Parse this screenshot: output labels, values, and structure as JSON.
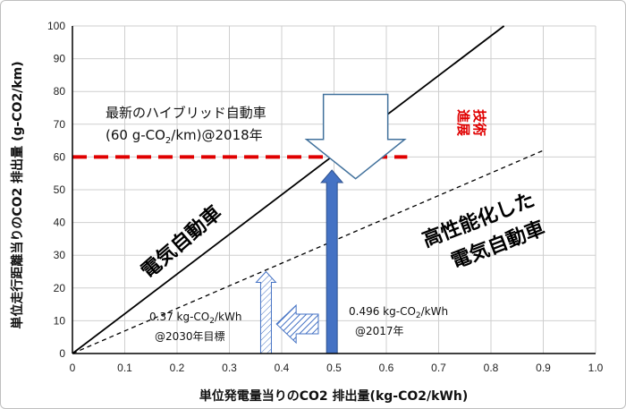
{
  "chart_data": {
    "type": "line",
    "x_axis": {
      "label": "単位発電量当りのCO2 排出量(kg-CO2/kWh)",
      "min": 0,
      "max": 1.0,
      "ticks": [
        "0",
        "0.1",
        "0.2",
        "0.3",
        "0.4",
        "0.5",
        "0.6",
        "0.7",
        "0.8",
        "0.9",
        "1.0"
      ]
    },
    "y_axis": {
      "label": "単位走行距離当りのCO2 排出量 (g-CO2/km)",
      "min": 0,
      "max": 100,
      "ticks": [
        "0",
        "10",
        "20",
        "30",
        "40",
        "50",
        "60",
        "70",
        "80",
        "90",
        "100"
      ]
    },
    "grid": true,
    "series": [
      {
        "style": "solid-black",
        "x": [
          0,
          0.825
        ],
        "y": [
          0,
          100
        ]
      },
      {
        "style": "dashed-black",
        "x": [
          0,
          0.9
        ],
        "y": [
          0,
          62
        ]
      },
      {
        "style": "dashed-red",
        "x": [
          0,
          0.64
        ],
        "y": [
          60,
          60
        ]
      }
    ],
    "arrows": [
      {
        "style": "solid-blue",
        "x": 0.496,
        "y_from": 0,
        "y_to": 56
      },
      {
        "style": "hatched-white",
        "x": 0.37,
        "y_from": 0,
        "y_to": 25
      },
      {
        "style": "hatched-blue-left",
        "x_from": 0.47,
        "x_to": 0.39,
        "y": 9
      },
      {
        "style": "outline-down",
        "x": 0.49,
        "y_from": 78,
        "y_to": 55
      }
    ],
    "annotations": {
      "hybrid_title": "最新のハイブリッド自動車",
      "hybrid_value": "(60 g-CO",
      "hybrid_value_sub": "2",
      "hybrid_value_end": "/km)@2018年",
      "ev_label": "電気自動車",
      "high_perf_ev_line1": "高性能化した",
      "high_perf_ev_line2": "電気自動車",
      "progress_line1": "技術",
      "progress_line2": "進展",
      "target_value": "0.37 kg-CO",
      "target_value_sub": "2",
      "target_value_end": "/kWh",
      "target_year": "@2030年目標",
      "current_value": "0.496 kg-CO",
      "current_value_sub": "2",
      "current_value_end": "/kWh",
      "current_year": "@2017年"
    }
  },
  "colors": {
    "grid": "#cfcfcf",
    "axis": "#000000",
    "red": "#e00000",
    "blue": "#4472c4",
    "dark_blue": "#2f528f",
    "arrow_outline": "#41719c"
  }
}
